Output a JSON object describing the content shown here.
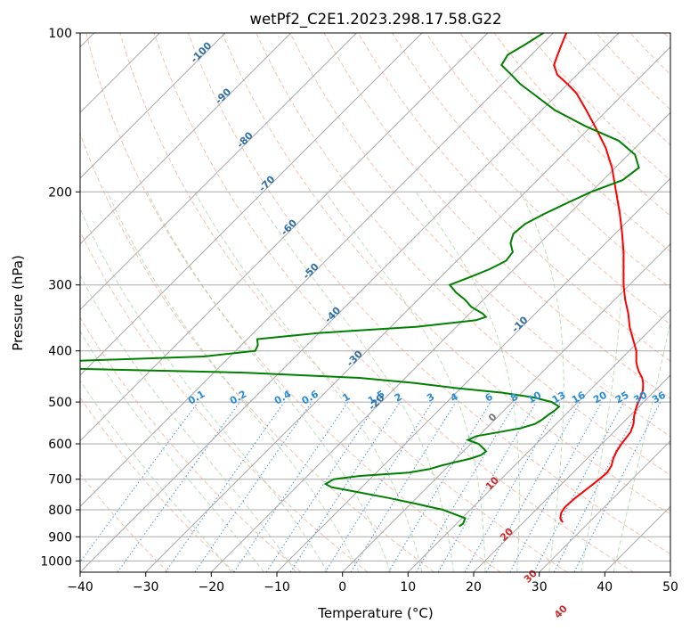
{
  "chart_data": {
    "type": "line",
    "title": "wetPf2_C2E1.2023.298.17.58.G22",
    "xlabel": "Temperature (°C)",
    "ylabel": "Pressure (hPa)",
    "xlim": [
      -40,
      50
    ],
    "ylim": [
      1050,
      100
    ],
    "y_scale": "log",
    "x_ticks": [
      -40,
      -30,
      -20,
      -10,
      0,
      10,
      20,
      30,
      40,
      50
    ],
    "y_ticks": [
      100,
      200,
      300,
      400,
      500,
      600,
      700,
      800,
      900,
      1000
    ],
    "skew": true,
    "grid": true,
    "series": [
      {
        "color": "#ff0000",
        "points": [
          [
            845,
            26.0
          ],
          [
            830,
            25.0
          ],
          [
            810,
            24.3
          ],
          [
            790,
            24.0
          ],
          [
            760,
            24.2
          ],
          [
            730,
            24.6
          ],
          [
            700,
            25.0
          ],
          [
            680,
            25.2
          ],
          [
            660,
            24.8
          ],
          [
            640,
            24.0
          ],
          [
            620,
            23.4
          ],
          [
            600,
            23.0
          ],
          [
            570,
            22.6
          ],
          [
            550,
            21.8
          ],
          [
            530,
            20.6
          ],
          [
            510,
            19.6
          ],
          [
            490,
            18.8
          ],
          [
            475,
            18.1
          ],
          [
            460,
            17.0
          ],
          [
            450,
            16.1
          ],
          [
            440,
            14.9
          ],
          [
            430,
            13.8
          ],
          [
            420,
            12.8
          ],
          [
            400,
            11.1
          ],
          [
            380,
            8.8
          ],
          [
            360,
            6.4
          ],
          [
            340,
            4.2
          ],
          [
            320,
            1.6
          ],
          [
            300,
            -0.9
          ],
          [
            280,
            -3.3
          ],
          [
            260,
            -5.9
          ],
          [
            240,
            -8.9
          ],
          [
            220,
            -12.3
          ],
          [
            200,
            -16.2
          ],
          [
            180,
            -20.5
          ],
          [
            165,
            -24.5
          ],
          [
            150,
            -29.5
          ],
          [
            140,
            -33.2
          ],
          [
            130,
            -37.3
          ],
          [
            125,
            -40.0
          ],
          [
            120,
            -43.0
          ],
          [
            115,
            -45.0
          ],
          [
            110,
            -46.0
          ],
          [
            105,
            -47.0
          ],
          [
            100,
            -48.0
          ]
        ]
      },
      {
        "color": "#008000",
        "points": [
          [
            860,
            10.8
          ],
          [
            850,
            11.0
          ],
          [
            830,
            10.5
          ],
          [
            820,
            9.0
          ],
          [
            800,
            5.8
          ],
          [
            780,
            1.0
          ],
          [
            760,
            -4.2
          ],
          [
            740,
            -10.0
          ],
          [
            730,
            -13.0
          ],
          [
            725,
            -14.6
          ],
          [
            715,
            -16.0
          ],
          [
            700,
            -15.5
          ],
          [
            690,
            -12.0
          ],
          [
            680,
            -5.0
          ],
          [
            670,
            -2.5
          ],
          [
            660,
            -1.2
          ],
          [
            650,
            0.4
          ],
          [
            640,
            2.2
          ],
          [
            630,
            3.3
          ],
          [
            620,
            3.5
          ],
          [
            610,
            2.4
          ],
          [
            600,
            1.2
          ],
          [
            590,
            -1.0
          ],
          [
            580,
            -0.3
          ],
          [
            570,
            2.6
          ],
          [
            560,
            5.3
          ],
          [
            550,
            6.8
          ],
          [
            540,
            7.2
          ],
          [
            530,
            7.4
          ],
          [
            520,
            7.7
          ],
          [
            510,
            7.8
          ],
          [
            500,
            6.0
          ],
          [
            490,
            2.5
          ],
          [
            480,
            -3.0
          ],
          [
            470,
            -11.0
          ],
          [
            460,
            -18.0
          ],
          [
            450,
            -27.0
          ],
          [
            440,
            -45.0
          ],
          [
            430,
            -80.0
          ],
          [
            420,
            -78.0
          ],
          [
            410,
            -54.0
          ],
          [
            400,
            -47.0
          ],
          [
            390,
            -47.5
          ],
          [
            380,
            -48.5
          ],
          [
            370,
            -40.0
          ],
          [
            360,
            -26.0
          ],
          [
            350,
            -18.0
          ],
          [
            345,
            -17.0
          ],
          [
            340,
            -18.0
          ],
          [
            330,
            -20.8
          ],
          [
            320,
            -22.8
          ],
          [
            310,
            -25.3
          ],
          [
            300,
            -27.4
          ],
          [
            290,
            -25.5
          ],
          [
            280,
            -23.7
          ],
          [
            270,
            -22.5
          ],
          [
            260,
            -22.8
          ],
          [
            250,
            -24.5
          ],
          [
            240,
            -25.5
          ],
          [
            230,
            -25.2
          ],
          [
            220,
            -23.8
          ],
          [
            210,
            -22.0
          ],
          [
            200,
            -20.0
          ],
          [
            190,
            -17.0
          ],
          [
            180,
            -16.4
          ],
          [
            170,
            -19.0
          ],
          [
            160,
            -23.6
          ],
          [
            150,
            -31.0
          ],
          [
            140,
            -38.0
          ],
          [
            130,
            -44.0
          ],
          [
            125,
            -47.2
          ],
          [
            120,
            -50.0
          ],
          [
            115,
            -53.0
          ],
          [
            110,
            -53.6
          ],
          [
            105,
            -52.5
          ],
          [
            100,
            -51.5
          ]
        ]
      }
    ],
    "isotherm_labels": [
      "-100",
      "-90",
      "-80",
      "-70",
      "-60",
      "-50",
      "-40",
      "-30",
      "-20",
      "-10",
      "0",
      "10",
      "20",
      "30",
      "40"
    ],
    "mixing_ratio_labels": [
      "0.1",
      "0.2",
      "0.4",
      "0.6",
      "1",
      "1.5",
      "2",
      "3",
      "4",
      "6",
      "8",
      "10",
      "13",
      "16",
      "20",
      "25",
      "30",
      "36"
    ]
  }
}
